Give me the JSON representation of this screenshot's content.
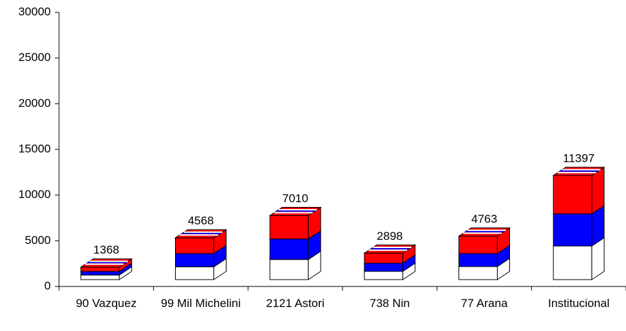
{
  "chart_data": {
    "type": "bar3d_stacked",
    "categories": [
      "90 Vazquez",
      "99 Mil Michelini",
      "2121 Astori",
      "738 Nin",
      "77 Arana",
      "Institucional"
    ],
    "series": [
      {
        "color": "#ffffff",
        "values": [
          500,
          1400,
          2200,
          900,
          1425,
          3675
        ]
      },
      {
        "color": "#0000ff",
        "values": [
          400,
          1450,
          2250,
          900,
          1425,
          3525
        ]
      },
      {
        "color": "#ff0000",
        "values": [
          468,
          1718,
          2560,
          1098,
          1913,
          4197
        ]
      }
    ],
    "totals": [
      1368,
      4568,
      7010,
      2898,
      4763,
      11397
    ],
    "ylim": [
      0,
      30000
    ],
    "yticks": [
      0,
      5000,
      10000,
      15000,
      20000,
      25000,
      30000
    ]
  }
}
